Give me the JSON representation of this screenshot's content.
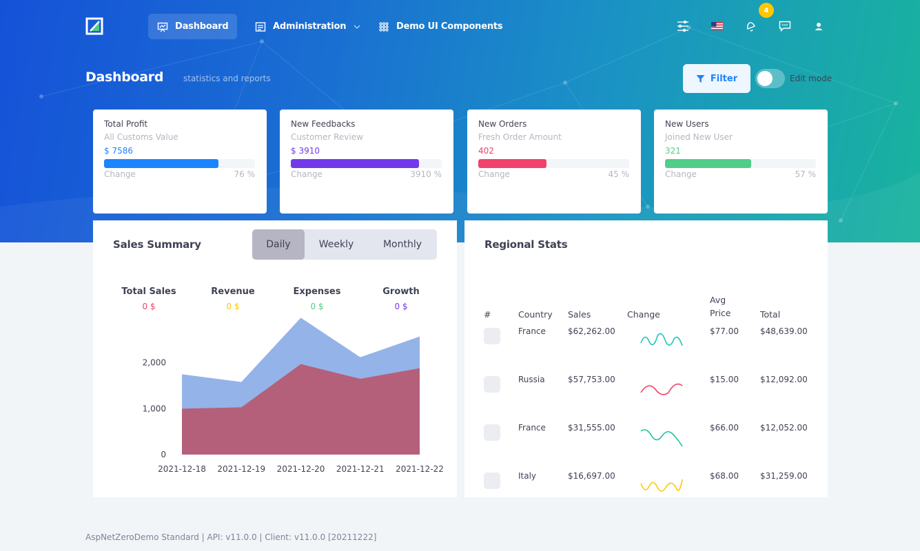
{
  "nav": {
    "items": [
      {
        "label": "Dashboard",
        "icon": "presentation-icon"
      },
      {
        "label": "Administration",
        "icon": "layers-icon"
      },
      {
        "label": "Demo UI Components",
        "icon": "grid-icon"
      }
    ],
    "notification_count": "4"
  },
  "header": {
    "title": "Dashboard",
    "subtitle": "statistics and reports",
    "filter_label": "Filter",
    "edit_mode_label": "Edit mode"
  },
  "stats": [
    {
      "title": "Total Profit",
      "subtitle": "All Customs Value",
      "value": "$ 7586",
      "change_label": "Change",
      "change": "76 %",
      "progress_pct": 76,
      "color": "#1b84ff"
    },
    {
      "title": "New Feedbacks",
      "subtitle": "Customer Review",
      "value": "$ 3910",
      "change_label": "Change",
      "change": "3910 %",
      "progress_pct": 85,
      "color": "#7239ea"
    },
    {
      "title": "New Orders",
      "subtitle": "Fresh Order Amount",
      "value": "402",
      "change_label": "Change",
      "change": "45 %",
      "progress_pct": 45,
      "color": "#f1416c"
    },
    {
      "title": "New Users",
      "subtitle": "Joined New User",
      "value": "321",
      "change_label": "Change",
      "change": "57 %",
      "progress_pct": 57,
      "color": "#50cd89"
    }
  ],
  "sales_summary": {
    "title": "Sales Summary",
    "periods": [
      "Daily",
      "Weekly",
      "Monthly"
    ],
    "active_period": "Daily",
    "kpis": [
      {
        "label": "Total Sales",
        "value": "0 $",
        "color": "#f1416c"
      },
      {
        "label": "Revenue",
        "value": "0 $",
        "color": "#ffc700"
      },
      {
        "label": "Expenses",
        "value": "0 $",
        "color": "#50cd89"
      },
      {
        "label": "Growth",
        "value": "0 $",
        "color": "#7239ea"
      }
    ]
  },
  "chart_data": {
    "type": "area",
    "x": [
      "2021-12-18",
      "2021-12-19",
      "2021-12-20",
      "2021-12-21",
      "2021-12-22"
    ],
    "ylim": [
      0,
      3000
    ],
    "yticks": [
      0,
      1000,
      2000
    ],
    "ytick_labels": [
      "0",
      "1,000",
      "2,000"
    ],
    "series": [
      {
        "values": [
          1750,
          1580,
          2980,
          2120,
          2570
        ],
        "color": "#94b3e8"
      },
      {
        "values": [
          1000,
          1030,
          1970,
          1650,
          1880
        ],
        "color": "#b5607a"
      }
    ]
  },
  "regional": {
    "title": "Regional Stats",
    "columns": [
      "#",
      "Country",
      "Sales",
      "Change",
      "Avg Price",
      "Total"
    ],
    "rows": [
      {
        "country": "France",
        "sales": "$62,262.00",
        "avg_price": "$77.00",
        "total": "$48,639.00",
        "spark_color": "#1bc5bd"
      },
      {
        "country": "Russia",
        "sales": "$57,753.00",
        "avg_price": "$15.00",
        "total": "$12,092.00",
        "spark_color": "#f1416c"
      },
      {
        "country": "France",
        "sales": "$31,555.00",
        "avg_price": "$66.00",
        "total": "$12,052.00",
        "spark_color": "#1bc5a0"
      },
      {
        "country": "Italy",
        "sales": "$16,697.00",
        "avg_price": "$68.00",
        "total": "$31,259.00",
        "spark_color": "#ffc700"
      }
    ]
  },
  "footer": {
    "text": "AspNetZeroDemo Standard | API: v11.0.0 | Client: v11.0.0 [20211222]"
  }
}
